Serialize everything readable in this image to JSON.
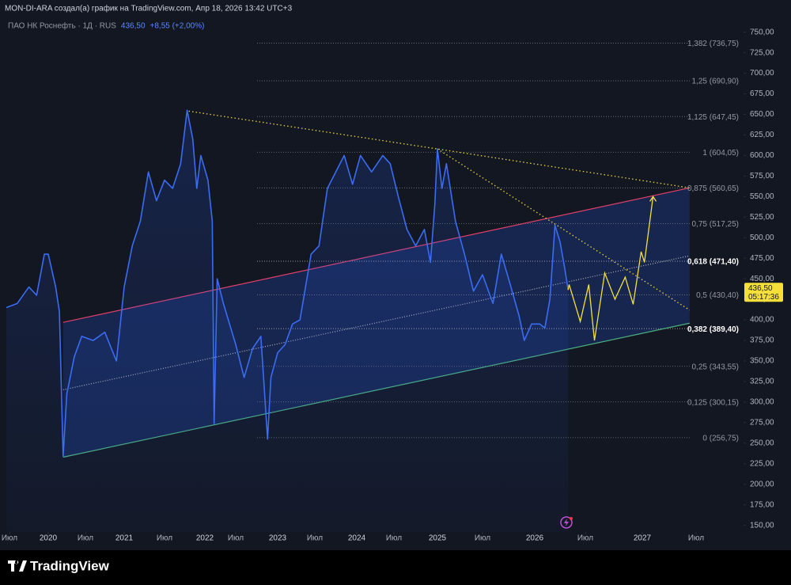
{
  "header": "MON-DI-ARA создал(а) график на TradingView.com, Апр 18, 2026 13:42 UTC+3",
  "footer": "TradingView",
  "chart_data": {
    "type": "line",
    "symbol": "ПАО НК Роснефть · 1Д · RUS",
    "last_price": {
      "value": 436.5,
      "label": "436,50"
    },
    "change": "+8,55 (+2,00%)",
    "countdown": "05:17:36",
    "color": "#3a6cf4",
    "x": [
      2019.46,
      2019.6,
      2019.75,
      2019.85,
      2019.95,
      2020.0,
      2020.1,
      2020.15,
      2020.2,
      2020.25,
      2020.35,
      2020.45,
      2020.6,
      2020.75,
      2020.9,
      2021.0,
      2021.1,
      2021.2,
      2021.3,
      2021.4,
      2021.5,
      2021.6,
      2021.7,
      2021.78,
      2021.85,
      2021.9,
      2021.95,
      2022.05,
      2022.12,
      2022.15,
      2022.2,
      2022.3,
      2022.4,
      2022.5,
      2022.6,
      2022.7,
      2022.8,
      2022.88,
      2022.92,
      2023.0,
      2023.1,
      2023.2,
      2023.3,
      2023.45,
      2023.55,
      2023.65,
      2023.75,
      2023.85,
      2023.95,
      2024.05,
      2024.2,
      2024.35,
      2024.45,
      2024.55,
      2024.65,
      2024.75,
      2024.85,
      2024.92,
      2024.97,
      2025.0,
      2025.05,
      2025.1,
      2025.2,
      2025.3,
      2025.4,
      2025.5,
      2025.6,
      2025.68,
      2025.75,
      2025.85,
      2025.9,
      2025.97,
      2026.05,
      2026.1,
      2026.15,
      2026.2,
      2026.25,
      2026.3,
      2026.33
    ],
    "values": [
      415,
      420,
      440,
      430,
      480,
      480,
      440,
      410,
      234,
      310,
      355,
      380,
      375,
      385,
      350,
      440,
      490,
      520,
      580,
      545,
      570,
      560,
      590,
      655,
      620,
      560,
      600,
      570,
      520,
      274,
      450,
      420,
      395,
      370,
      330,
      365,
      380,
      255,
      330,
      360,
      370,
      395,
      400,
      480,
      490,
      560,
      580,
      600,
      565,
      600,
      580,
      600,
      590,
      550,
      510,
      490,
      510,
      470,
      540,
      608,
      560,
      590,
      520,
      480,
      435,
      455,
      420,
      480,
      450,
      405,
      375,
      395,
      395,
      390,
      425,
      515,
      495,
      460,
      436.5
    ],
    "projection": {
      "color": "#f5e03a",
      "x": [
        2026.33,
        2026.34,
        2026.45,
        2026.53,
        2026.58,
        2026.67,
        2026.76,
        2026.85,
        2026.92,
        2026.99,
        2027.02,
        2027.1
      ],
      "values": [
        436.5,
        443,
        398,
        443,
        375,
        457,
        425,
        452,
        419,
        483,
        470,
        550
      ]
    },
    "channel": {
      "x": [
        2020.2,
        2027.44
      ],
      "upper": [
        397,
        560.65
      ],
      "middle": [
        315,
        478
      ],
      "lower": [
        233,
        396
      ]
    },
    "trendlines": [
      {
        "x": [
          2021.8,
          2025.0,
          2027.44
        ],
        "values": [
          654,
          608,
          560.65
        ]
      },
      {
        "x": [
          2025.0,
          2027.44
        ],
        "values": [
          608,
          412
        ]
      }
    ],
    "fib_levels": [
      {
        "value": 736.75,
        "label": "1,382 (736,75)"
      },
      {
        "value": 690.9,
        "label": "1,25 (690,90)"
      },
      {
        "value": 647.45,
        "label": "1,125 (647,45)"
      },
      {
        "value": 604.05,
        "label": "1 (604,05)"
      },
      {
        "value": 560.65,
        "label": "0,875 (560,65)"
      },
      {
        "value": 517.25,
        "label": "0,75 (517,25)"
      },
      {
        "value": 471.4,
        "label": "0,618 (471,40)",
        "bold": true
      },
      {
        "value": 430.4,
        "label": "0,5 (430,40)"
      },
      {
        "value": 389.4,
        "label": "0,382 (389,40)",
        "bold": true
      },
      {
        "value": 343.55,
        "label": "0,25 (343,55)"
      },
      {
        "value": 300.15,
        "label": "0,125 (300,15)"
      },
      {
        "value": 256.75,
        "label": "0 (256,75)"
      }
    ],
    "xlim": [
      2019.4,
      2027.6
    ],
    "ylim": [
      142,
      768
    ],
    "xticks": [
      {
        "value": 2019.5,
        "label": "Июл"
      },
      2020,
      {
        "value": 2020.5,
        "label": "Июл"
      },
      2021,
      {
        "value": 2021.5,
        "label": "Июл"
      },
      2022,
      {
        "value": 2022.5,
        "label": "Июл"
      },
      2023,
      {
        "value": 2023.5,
        "label": "Июл"
      },
      2024,
      {
        "value": 2024.5,
        "label": "Июл"
      },
      2025,
      {
        "value": 2025.5,
        "label": "Июл"
      },
      2026,
      {
        "value": 2026.5,
        "label": "Июл"
      },
      2027,
      {
        "value": 2027.5,
        "label": "Июл"
      }
    ],
    "yticks": [
      {
        "value": 750,
        "label": "750,00"
      },
      {
        "value": 725,
        "label": "725,00"
      },
      {
        "value": 700,
        "label": "700,00"
      },
      {
        "value": 675,
        "label": "675,00"
      },
      {
        "value": 650,
        "label": "650,00"
      },
      {
        "value": 625,
        "label": "625,00"
      },
      {
        "value": 600,
        "label": "600,00"
      },
      {
        "value": 575,
        "label": "575,00"
      },
      {
        "value": 550,
        "label": "550,00"
      },
      {
        "value": 525,
        "label": "525,00"
      },
      {
        "value": 500,
        "label": "500,00"
      },
      {
        "value": 475,
        "label": "475,00"
      },
      {
        "value": 450,
        "label": "450,00"
      },
      {
        "value": 425,
        "label": "425,00"
      },
      {
        "value": 400,
        "label": "400,00"
      },
      {
        "value": 375,
        "label": "375,00"
      },
      {
        "value": 350,
        "label": "350,00"
      },
      {
        "value": 325,
        "label": "325,00"
      },
      {
        "value": 300,
        "label": "300,00"
      },
      {
        "value": 275,
        "label": "275,00"
      },
      {
        "value": 250,
        "label": "250,00"
      },
      {
        "value": 225,
        "label": "225,00"
      },
      {
        "value": 200,
        "label": "200,00"
      },
      {
        "value": 175,
        "label": "175,00"
      },
      {
        "value": 150,
        "label": "150,00"
      }
    ]
  }
}
